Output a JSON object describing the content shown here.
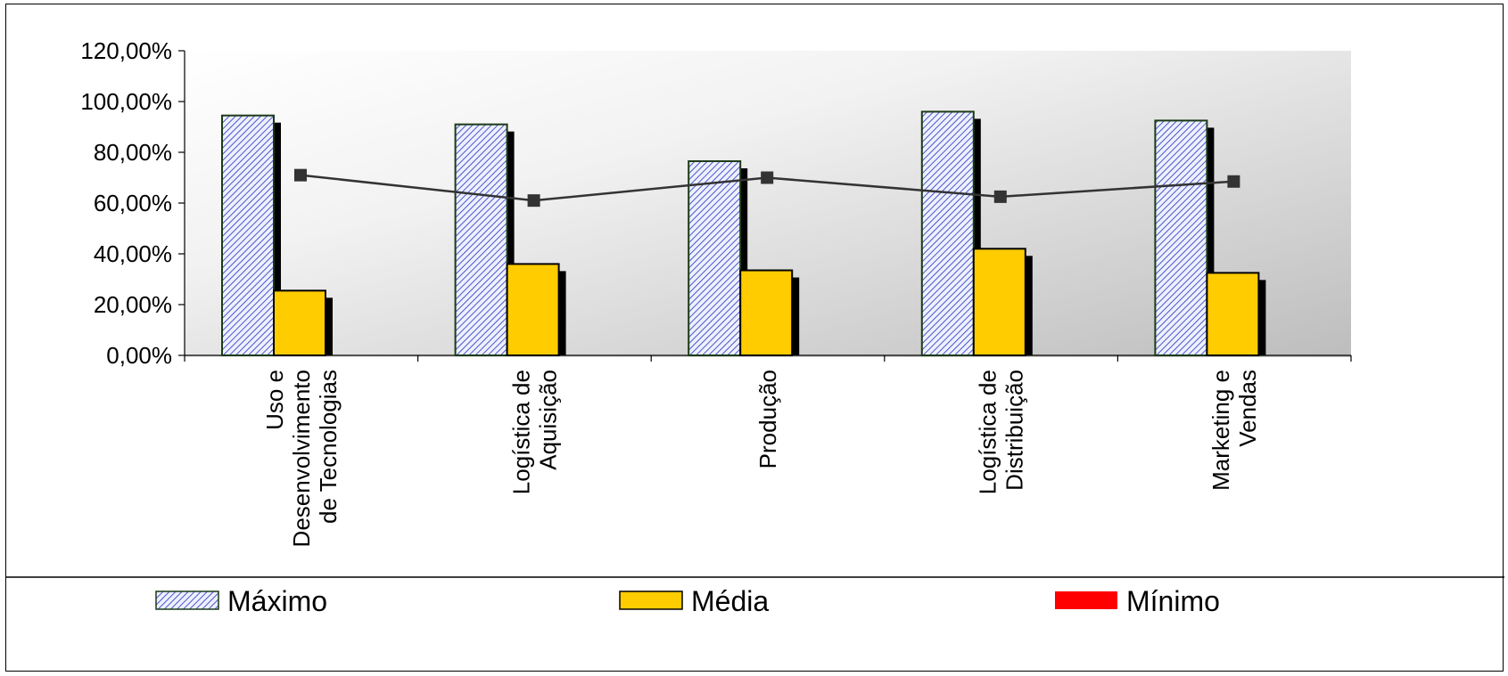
{
  "chart_data": {
    "type": "bar",
    "categories": [
      [
        "Uso e",
        "Desenvolvimento",
        "de Tecnologias"
      ],
      [
        "Logística de",
        "Aquisição"
      ],
      [
        "Produção"
      ],
      [
        "Logística de",
        "Distribuição"
      ],
      [
        "Marketing e",
        "Vendas"
      ]
    ],
    "y_ticks": [
      "0,00%",
      "20,00%",
      "40,00%",
      "60,00%",
      "80,00%",
      "100,00%",
      "120,00%"
    ],
    "ylim": [
      0,
      120
    ],
    "series": [
      {
        "name": "Máximo",
        "kind": "bar",
        "values": [
          94.5,
          91,
          76.5,
          96,
          92.5
        ],
        "color": "#c8ccf0",
        "pattern": "diagonal-hatch-blue"
      },
      {
        "name": "Média",
        "kind": "bar",
        "values": [
          25.5,
          36,
          33.5,
          42,
          32.5
        ],
        "color": "#ffcc00"
      },
      {
        "name": "Mínimo",
        "kind": "line",
        "values": [
          71,
          61,
          70,
          62.5,
          68.5
        ],
        "color": "#333333",
        "legend_color": "#ff0000"
      }
    ],
    "legend_position": "bottom",
    "grid": false
  }
}
